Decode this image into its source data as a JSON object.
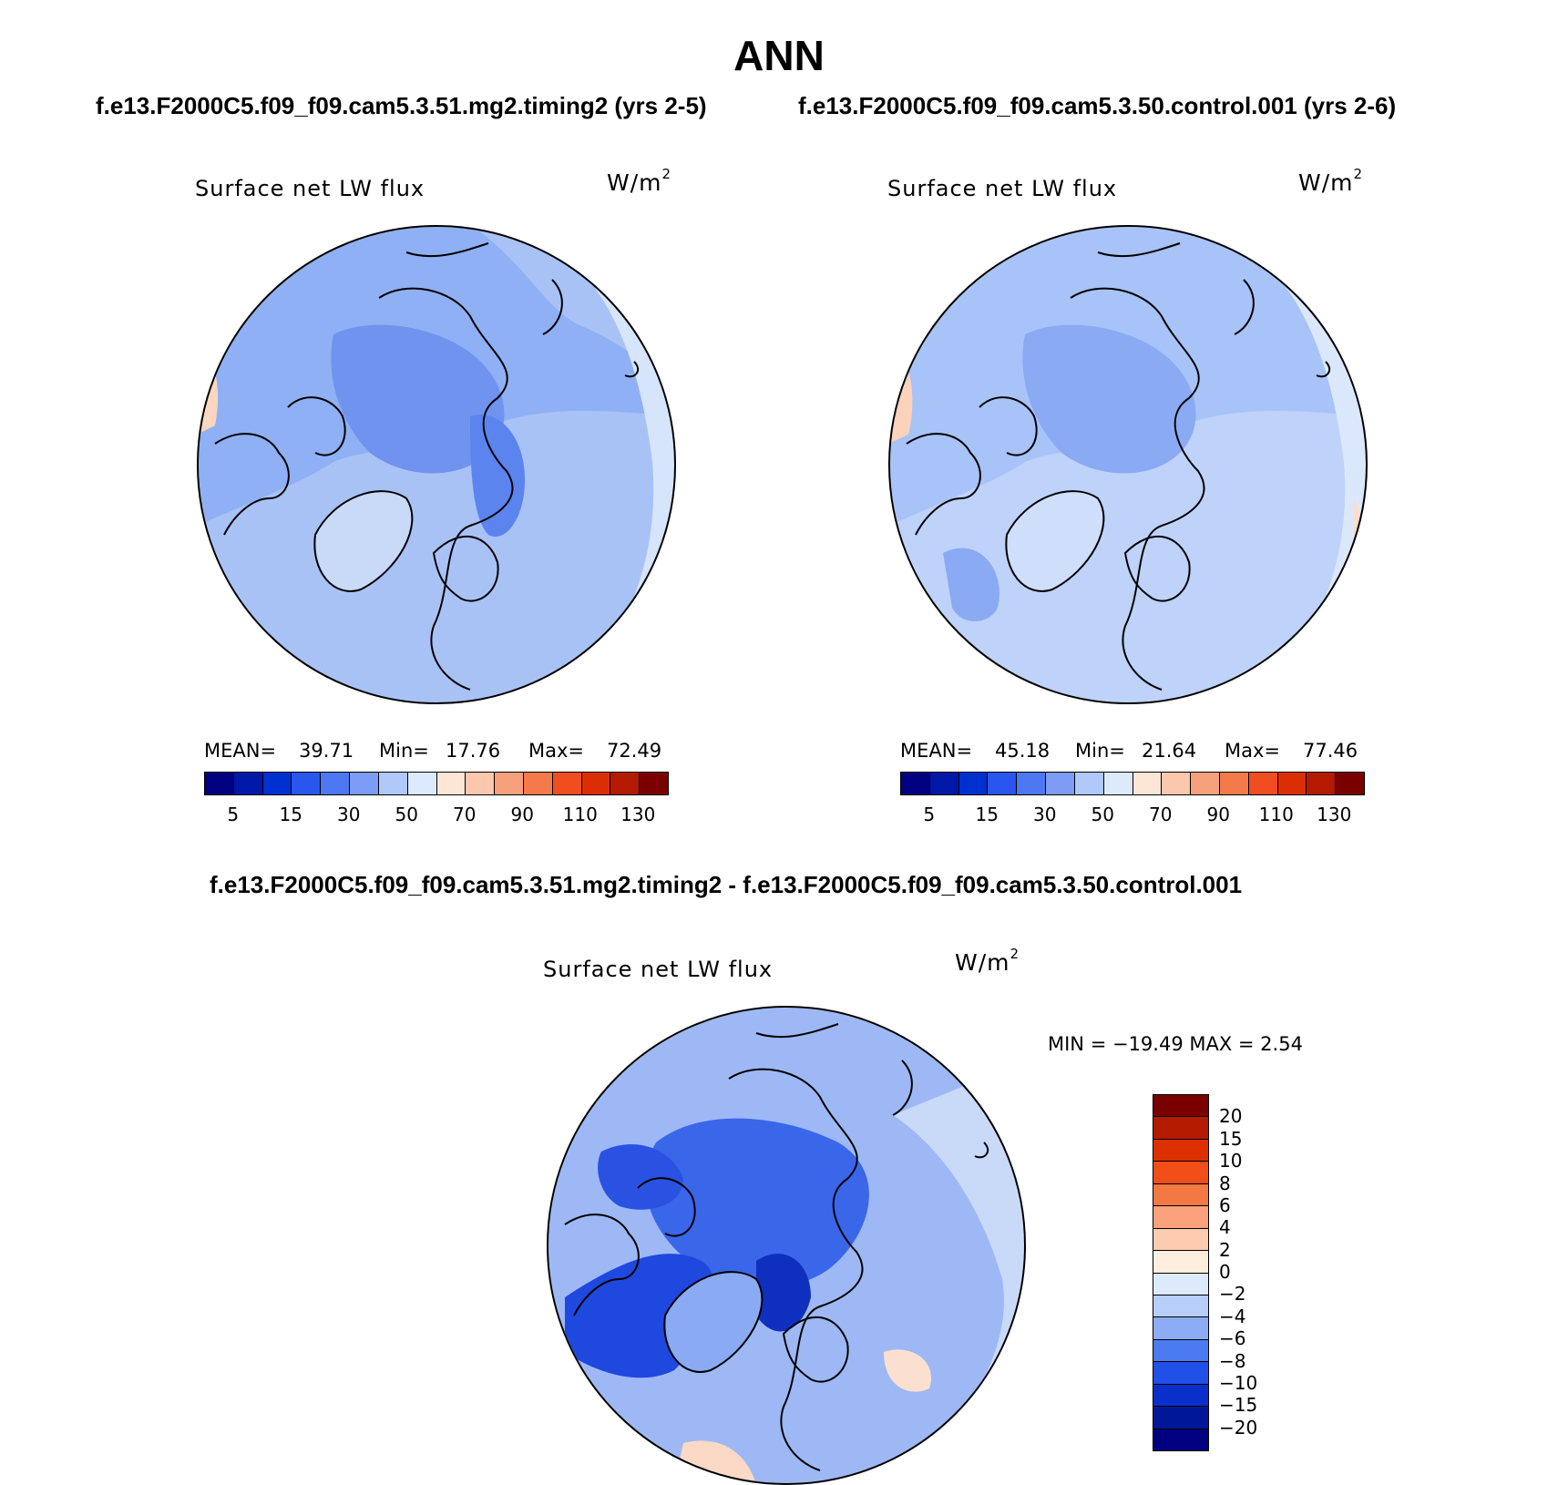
{
  "title": "ANN",
  "top_subtitle_left": "f.e13.F2000C5.f09_f09.cam5.3.51.mg2.timing2 (yrs 2-5)",
  "top_subtitle_right": "f.e13.F2000C5.f09_f09.cam5.3.50.control.001 (yrs 2-6)",
  "diff_subtitle": "f.e13.F2000C5.f09_f09.cam5.3.51.mg2.timing2 - f.e13.F2000C5.f09_f09.cam5.3.50.control.001",
  "panels": [
    {
      "label": "Surface net LW flux",
      "units": "W/m",
      "units_exp": "2",
      "mean_label": "MEAN=",
      "mean": "39.71",
      "min_label": "Min=",
      "min": "17.76",
      "max_label": "Max=",
      "max": "72.49",
      "base_color": "#8fb0f4"
    },
    {
      "label": "Surface net LW flux",
      "units": "W/m",
      "units_exp": "2",
      "mean_label": "MEAN=",
      "mean": "45.18",
      "min_label": "Min=",
      "min": "21.64",
      "max_label": "Max=",
      "max": "77.46",
      "base_color": "#a8c3f8"
    },
    {
      "label": "Surface net LW flux",
      "units": "W/m",
      "units_exp": "2",
      "minmax_text": "MIN = −19.49 MAX =    2.54",
      "base_color": "#9db8f5"
    }
  ],
  "abs_colorbar": {
    "colors": [
      "#000080",
      "#0018a8",
      "#0030d0",
      "#2856ee",
      "#4c78f2",
      "#7c9cf5",
      "#b0c8fa",
      "#dde9fc",
      "#fde6d6",
      "#fbc7ad",
      "#f7a07c",
      "#f47a4c",
      "#f04e20",
      "#dc2e04",
      "#b41a00",
      "#7a0000"
    ],
    "tick_labels": [
      "5",
      "15",
      "30",
      "50",
      "70",
      "90",
      "110",
      "130"
    ]
  },
  "diff_colorbar": {
    "colors": [
      "#7a0000",
      "#b41a00",
      "#dc3000",
      "#f24e18",
      "#f47844",
      "#fba27c",
      "#fccbb0",
      "#fdeede",
      "#ddeafc",
      "#b8cefa",
      "#8cacf6",
      "#4c7af0",
      "#2050e6",
      "#0a30cc",
      "#001898",
      "#000080"
    ],
    "tick_labels": [
      "20",
      "15",
      "10",
      "8",
      "6",
      "4",
      "2",
      "0",
      "−2",
      "−4",
      "−6",
      "−8",
      "−10",
      "−15",
      "−20"
    ]
  },
  "chart_data": [
    {
      "type": "heatmap",
      "title": "Surface net LW flux",
      "subtitle": "f.e13.F2000C5.f09_f09.cam5.3.51.mg2.timing2 (yrs 2-5)",
      "units": "W/m2",
      "projection": "north polar stereographic",
      "mean": 39.71,
      "min": 17.76,
      "max": 72.49,
      "levels": [
        5,
        10,
        15,
        20,
        30,
        40,
        50,
        60,
        70,
        80,
        90,
        100,
        110,
        120,
        130
      ]
    },
    {
      "type": "heatmap",
      "title": "Surface net LW flux",
      "subtitle": "f.e13.F2000C5.f09_f09.cam5.3.50.control.001 (yrs 2-6)",
      "units": "W/m2",
      "projection": "north polar stereographic",
      "mean": 45.18,
      "min": 21.64,
      "max": 77.46,
      "levels": [
        5,
        10,
        15,
        20,
        30,
        40,
        50,
        60,
        70,
        80,
        90,
        100,
        110,
        120,
        130
      ]
    },
    {
      "type": "heatmap",
      "title": "Surface net LW flux",
      "subtitle": "f.e13.F2000C5.f09_f09.cam5.3.51.mg2.timing2 - f.e13.F2000C5.f09_f09.cam5.3.50.control.001",
      "units": "W/m2",
      "projection": "north polar stereographic",
      "min": -19.49,
      "max": 2.54,
      "levels": [
        -20,
        -15,
        -10,
        -8,
        -6,
        -4,
        -2,
        0,
        2,
        4,
        6,
        8,
        10,
        15,
        20
      ]
    }
  ]
}
